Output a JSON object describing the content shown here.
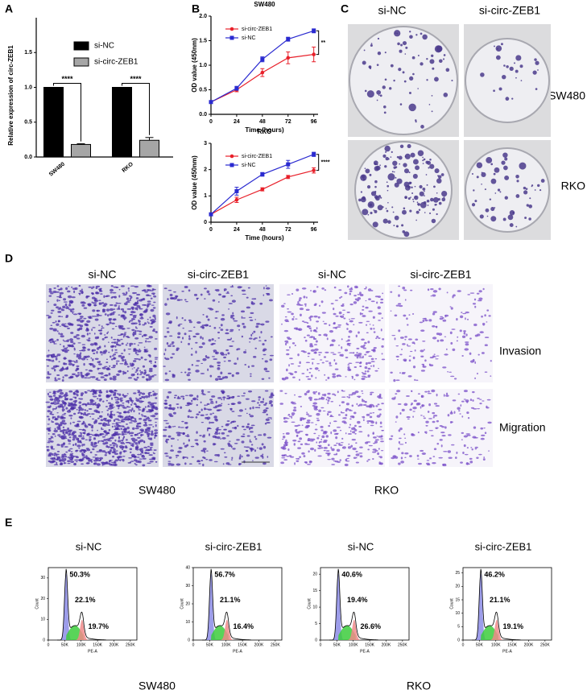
{
  "panel_labels": [
    "A",
    "B",
    "C",
    "D",
    "E"
  ],
  "chart_data": [
    {
      "type": "bar",
      "ylabel": "Relative expression of circ-ZEB1",
      "categories": [
        "SW480",
        "RKO"
      ],
      "series": [
        {
          "name": "si-NC",
          "color": "#000000",
          "values": [
            1,
            1
          ]
        },
        {
          "name": "si-circ-ZEB1",
          "color": "#a6a6a6",
          "values": [
            0.18,
            0.24
          ],
          "errors": [
            0.01,
            0.04
          ]
        }
      ],
      "ylim": [
        0,
        2.0
      ],
      "yticks": [
        {
          "value": 0,
          "label": "0.0"
        },
        {
          "value": 0.5,
          "label": "0.5"
        },
        {
          "value": 1.0,
          "label": "1.0"
        },
        {
          "value": 1.5,
          "label": "1.5"
        }
      ],
      "annotations": [
        "****",
        "****"
      ],
      "legend": "upper right"
    },
    {
      "type": "line",
      "title": "SW480",
      "xlabel": "Time (hours)",
      "ylabel": "OD value (450nm)",
      "x": [
        0,
        24,
        48,
        72,
        96
      ],
      "series": [
        {
          "name": "si-circ-ZEB1",
          "color": "#e8202a",
          "marker": "circle",
          "values": [
            0.25,
            0.5,
            0.85,
            1.15,
            1.22
          ],
          "errors": [
            0.02,
            0.04,
            0.08,
            0.12,
            0.15
          ]
        },
        {
          "name": "si-NC",
          "color": "#2a2ad0",
          "marker": "square",
          "values": [
            0.25,
            0.53,
            1.12,
            1.53,
            1.7
          ],
          "errors": [
            0.02,
            0.04,
            0.05,
            0.04,
            0.04
          ]
        }
      ],
      "xlim": [
        0,
        100
      ],
      "xticks": [
        0,
        24,
        48,
        72,
        96
      ],
      "ylim": [
        0,
        2.0
      ],
      "yticks": [
        {
          "value": 0,
          "label": "0.0"
        },
        {
          "value": 0.5,
          "label": "0.5"
        },
        {
          "value": 1.0,
          "label": "1.0"
        },
        {
          "value": 1.5,
          "label": "1.5"
        },
        {
          "value": 2.0,
          "label": "2.0"
        }
      ],
      "annotations": [
        "**"
      ]
    },
    {
      "type": "line",
      "title": "RKO",
      "xlabel": "Time (hours)",
      "ylabel": "OD value (450nm)",
      "x": [
        0,
        24,
        48,
        72,
        96
      ],
      "series": [
        {
          "name": "si-circ-ZEB1",
          "color": "#e8202a",
          "marker": "circle",
          "values": [
            0.3,
            0.85,
            1.25,
            1.72,
            1.97
          ],
          "errors": [
            0.03,
            0.1,
            0.06,
            0.06,
            0.1
          ]
        },
        {
          "name": "si-NC",
          "color": "#2a2ad0",
          "marker": "square",
          "values": [
            0.3,
            1.18,
            1.82,
            2.2,
            2.58
          ],
          "errors": [
            0.03,
            0.15,
            0.07,
            0.15,
            0.08
          ]
        }
      ],
      "xlim": [
        0,
        100
      ],
      "xticks": [
        0,
        24,
        48,
        72,
        96
      ],
      "ylim": [
        0,
        3
      ],
      "yticks": [
        0,
        1,
        2,
        3
      ],
      "annotations": [
        "****"
      ]
    },
    {
      "type": "cytometry",
      "title": "si-NC",
      "xlabel": "PE-A",
      "ylabel": "Count",
      "xlim": [
        0,
        270000
      ],
      "xticks": [
        0,
        {
          "value": 50000,
          "label": "50K"
        },
        {
          "value": 100000,
          "label": "100K"
        },
        {
          "value": 150000,
          "label": "150K"
        },
        {
          "value": 200000,
          "label": "200K"
        },
        {
          "value": 250000,
          "label": "250K"
        }
      ],
      "ylim": [
        0,
        35
      ],
      "yticks": [
        0,
        10,
        20,
        30
      ],
      "annotations": [
        "50.3%",
        "22.1%",
        "19.7%"
      ],
      "colors": [
        "#8c8ce6",
        "#3ccc3c",
        "#f08a8a"
      ]
    },
    {
      "type": "cytometry",
      "title": "si-circ-ZEB1",
      "xlabel": "PE-A",
      "ylabel": "Count",
      "xlim": [
        0,
        270000
      ],
      "xticks": [
        0,
        {
          "value": 50000,
          "label": "50K"
        },
        {
          "value": 100000,
          "label": "100K"
        },
        {
          "value": 150000,
          "label": "150K"
        },
        {
          "value": 200000,
          "label": "200K"
        },
        {
          "value": 250000,
          "label": "250K"
        }
      ],
      "ylim": [
        0,
        40
      ],
      "yticks": [
        0,
        10,
        20,
        30,
        40
      ],
      "annotations": [
        "56.7%",
        "21.1%",
        "16.4%"
      ],
      "colors": [
        "#8c8ce6",
        "#3ccc3c",
        "#f08a8a"
      ]
    },
    {
      "type": "cytometry",
      "title": "si-NC",
      "xlabel": "PE-A",
      "ylabel": "Count",
      "xlim": [
        0,
        270000
      ],
      "xticks": [
        0,
        {
          "value": 50000,
          "label": "50K"
        },
        {
          "value": 100000,
          "label": "100K"
        },
        {
          "value": 150000,
          "label": "150K"
        },
        {
          "value": 200000,
          "label": "200K"
        },
        {
          "value": 250000,
          "label": "250K"
        }
      ],
      "ylim": [
        0,
        22
      ],
      "yticks": [
        0,
        5,
        10,
        15,
        20
      ],
      "annotations": [
        "40.6%",
        "19.4%",
        "26.6%"
      ],
      "colors": [
        "#8c8ce6",
        "#3ccc3c",
        "#f08a8a"
      ]
    },
    {
      "type": "cytometry",
      "title": "si-circ-ZEB1",
      "xlabel": "PE-A",
      "ylabel": "Count",
      "xlim": [
        0,
        270000
      ],
      "xticks": [
        0,
        {
          "value": 50000,
          "label": "50K"
        },
        {
          "value": 100000,
          "label": "100K"
        },
        {
          "value": 150000,
          "label": "150K"
        },
        {
          "value": 200000,
          "label": "200K"
        },
        {
          "value": 250000,
          "label": "250K"
        }
      ],
      "ylim": [
        0,
        27
      ],
      "yticks": [
        0,
        5,
        10,
        15,
        20,
        25
      ],
      "annotations": [
        "46.2%",
        "21.1%",
        "19.1%"
      ],
      "colors": [
        "#8c8ce6",
        "#3ccc3c",
        "#f08a8a"
      ]
    }
  ],
  "colony": {
    "columns": [
      "si-NC",
      "si-circ-ZEB1"
    ],
    "rows": [
      "SW480",
      "RKO"
    ]
  },
  "transwell": {
    "columns": [
      "si-NC",
      "si-circ-ZEB1",
      "si-NC",
      "si-circ-ZEB1"
    ],
    "rows": [
      "Invasion",
      "Migration"
    ],
    "groups": [
      "SW480",
      "RKO"
    ]
  },
  "flow": {
    "groups": [
      "SW480",
      "RKO"
    ]
  }
}
